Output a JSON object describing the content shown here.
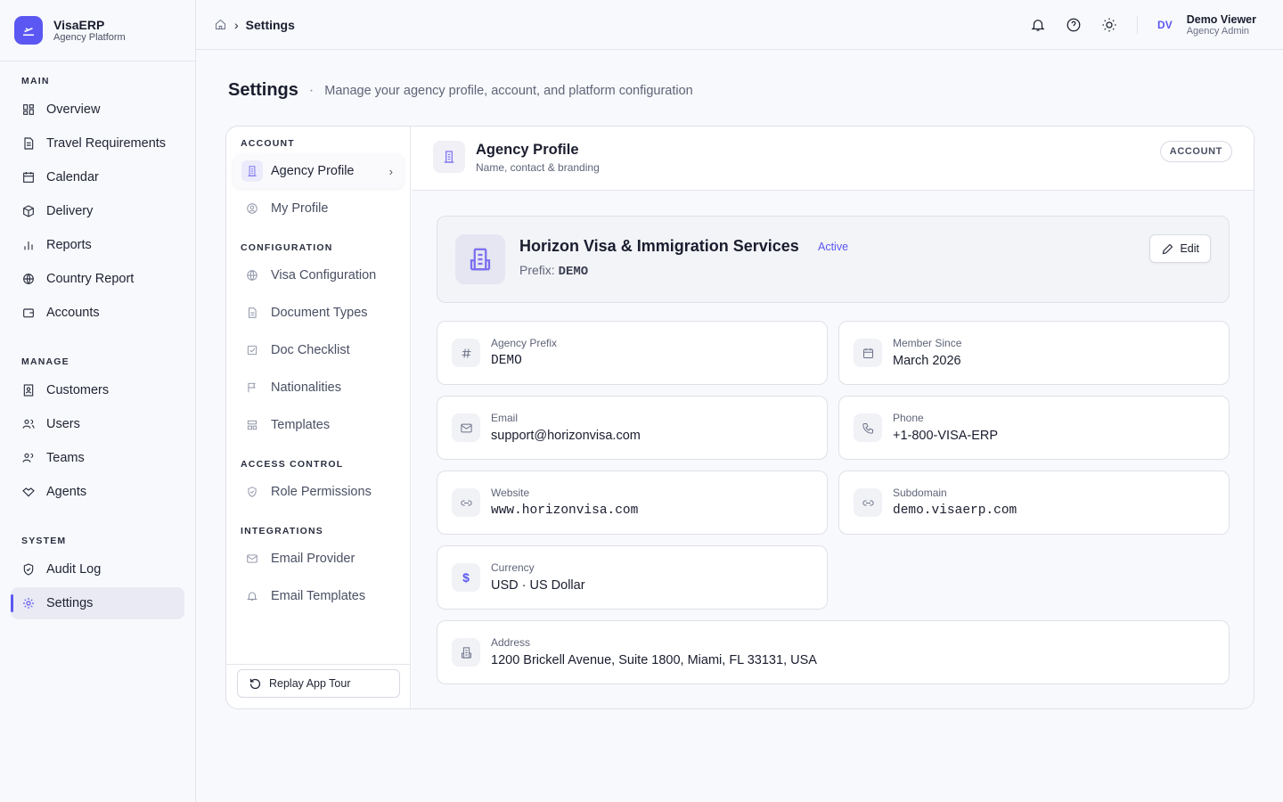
{
  "brand": {
    "name": "VisaERP",
    "subtitle": "Agency Platform"
  },
  "sidebar": {
    "sections": [
      {
        "label": "MAIN",
        "items": [
          "Overview",
          "Travel Requirements",
          "Calendar",
          "Delivery",
          "Reports",
          "Country Report",
          "Accounts"
        ]
      },
      {
        "label": "MANAGE",
        "items": [
          "Customers",
          "Users",
          "Teams",
          "Agents"
        ]
      },
      {
        "label": "SYSTEM",
        "items": [
          "Audit Log",
          "Settings"
        ]
      }
    ],
    "active": "Settings"
  },
  "breadcrumb": {
    "current": "Settings"
  },
  "user": {
    "initials": "DV",
    "name": "Demo Viewer",
    "role": "Agency Admin"
  },
  "page": {
    "title": "Settings",
    "description": "Manage your agency profile, account, and platform configuration"
  },
  "settings_nav": {
    "sections": [
      {
        "label": "ACCOUNT"
      },
      {
        "label": "CONFIGURATION"
      },
      {
        "label": "ACCESS CONTROL"
      },
      {
        "label": "INTEGRATIONS"
      }
    ],
    "items": [
      "Agency Profile",
      "My Profile",
      "Visa Configuration",
      "Document Types",
      "Doc Checklist",
      "Nationalities",
      "Templates",
      "Role Permissions",
      "Email Provider",
      "Email Templates"
    ],
    "active": "Agency Profile",
    "replay_label": "Replay App Tour"
  },
  "panel": {
    "title": "Agency Profile",
    "subtitle": "Name, contact & branding",
    "badge": "ACCOUNT"
  },
  "agency": {
    "name": "Horizon Visa & Immigration Services",
    "status": "Active",
    "prefix_label": "Prefix:",
    "prefix": "DEMO",
    "edit_label": "Edit"
  },
  "fields": [
    {
      "label": "Agency Prefix",
      "value": "DEMO",
      "icon": "hash-icon"
    },
    {
      "label": "Member Since",
      "value": "March 2026",
      "icon": "calendar-icon"
    },
    {
      "label": "Email",
      "value": "support@horizonvisa.com",
      "icon": "mail-icon"
    },
    {
      "label": "Phone",
      "value": "+1-800-VISA-ERP",
      "icon": "phone-icon"
    },
    {
      "label": "Website",
      "value": "www.horizonvisa.com",
      "icon": "link-icon"
    },
    {
      "label": "Subdomain",
      "value": "demo.visaerp.com",
      "icon": "link-icon"
    },
    {
      "label": "Currency",
      "value": "USD · US Dollar",
      "icon": "dollar-icon"
    },
    {
      "label": "Address",
      "value": "1200 Brickell Avenue, Suite 1800, Miami, FL 33131, USA",
      "icon": "building-icon"
    }
  ],
  "colors": {
    "accent": "#5b57f2"
  }
}
